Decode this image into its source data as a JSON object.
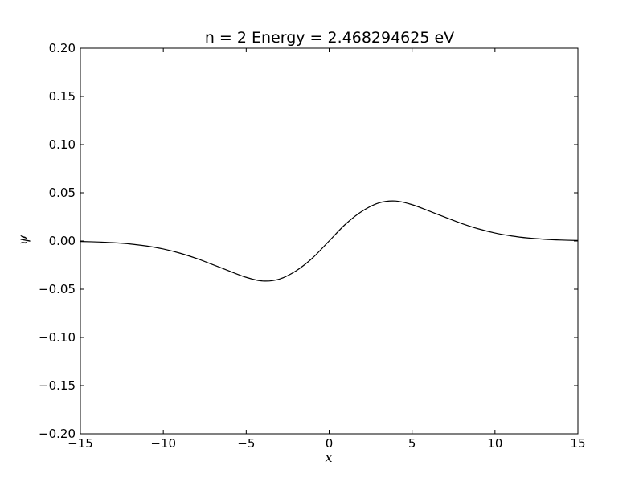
{
  "chart_data": {
    "type": "line",
    "title": "n = 2   Energy = 2.468294625 eV",
    "xlabel": "x",
    "ylabel": "ψ",
    "xlim": [
      -15,
      15
    ],
    "ylim": [
      -0.2,
      0.2
    ],
    "grid": false,
    "xticks": [
      -15,
      -10,
      -5,
      0,
      5,
      10,
      15
    ],
    "xtick_labels": [
      "−15",
      "−10",
      "−5",
      "0",
      "5",
      "10",
      "15"
    ],
    "yticks": [
      -0.2,
      -0.15,
      -0.1,
      -0.05,
      0.0,
      0.05,
      0.1,
      0.15,
      0.2
    ],
    "ytick_labels": [
      "−0.20",
      "−0.15",
      "−0.10",
      "−0.05",
      "0.00",
      "0.05",
      "0.10",
      "0.15",
      "0.20"
    ],
    "line_color": "#000000",
    "series": [
      {
        "x": [
          -15,
          -14,
          -13,
          -12,
          -11,
          -10,
          -9,
          -8,
          -7,
          -6,
          -5,
          -4,
          -3,
          -2,
          -1,
          0,
          1,
          2,
          3,
          4,
          5,
          6,
          7,
          8,
          9,
          10,
          11,
          12,
          13,
          14,
          15
        ],
        "values": [
          -0.0005,
          -0.001,
          -0.0018,
          -0.0031,
          -0.0052,
          -0.0083,
          -0.0126,
          -0.0181,
          -0.0246,
          -0.0313,
          -0.0377,
          -0.0415,
          -0.0395,
          -0.031,
          -0.0176,
          0.0,
          0.0176,
          0.031,
          0.0395,
          0.0415,
          0.0377,
          0.0313,
          0.0246,
          0.0181,
          0.0126,
          0.0083,
          0.0052,
          0.0031,
          0.0018,
          0.001,
          0.0005
        ]
      }
    ]
  }
}
